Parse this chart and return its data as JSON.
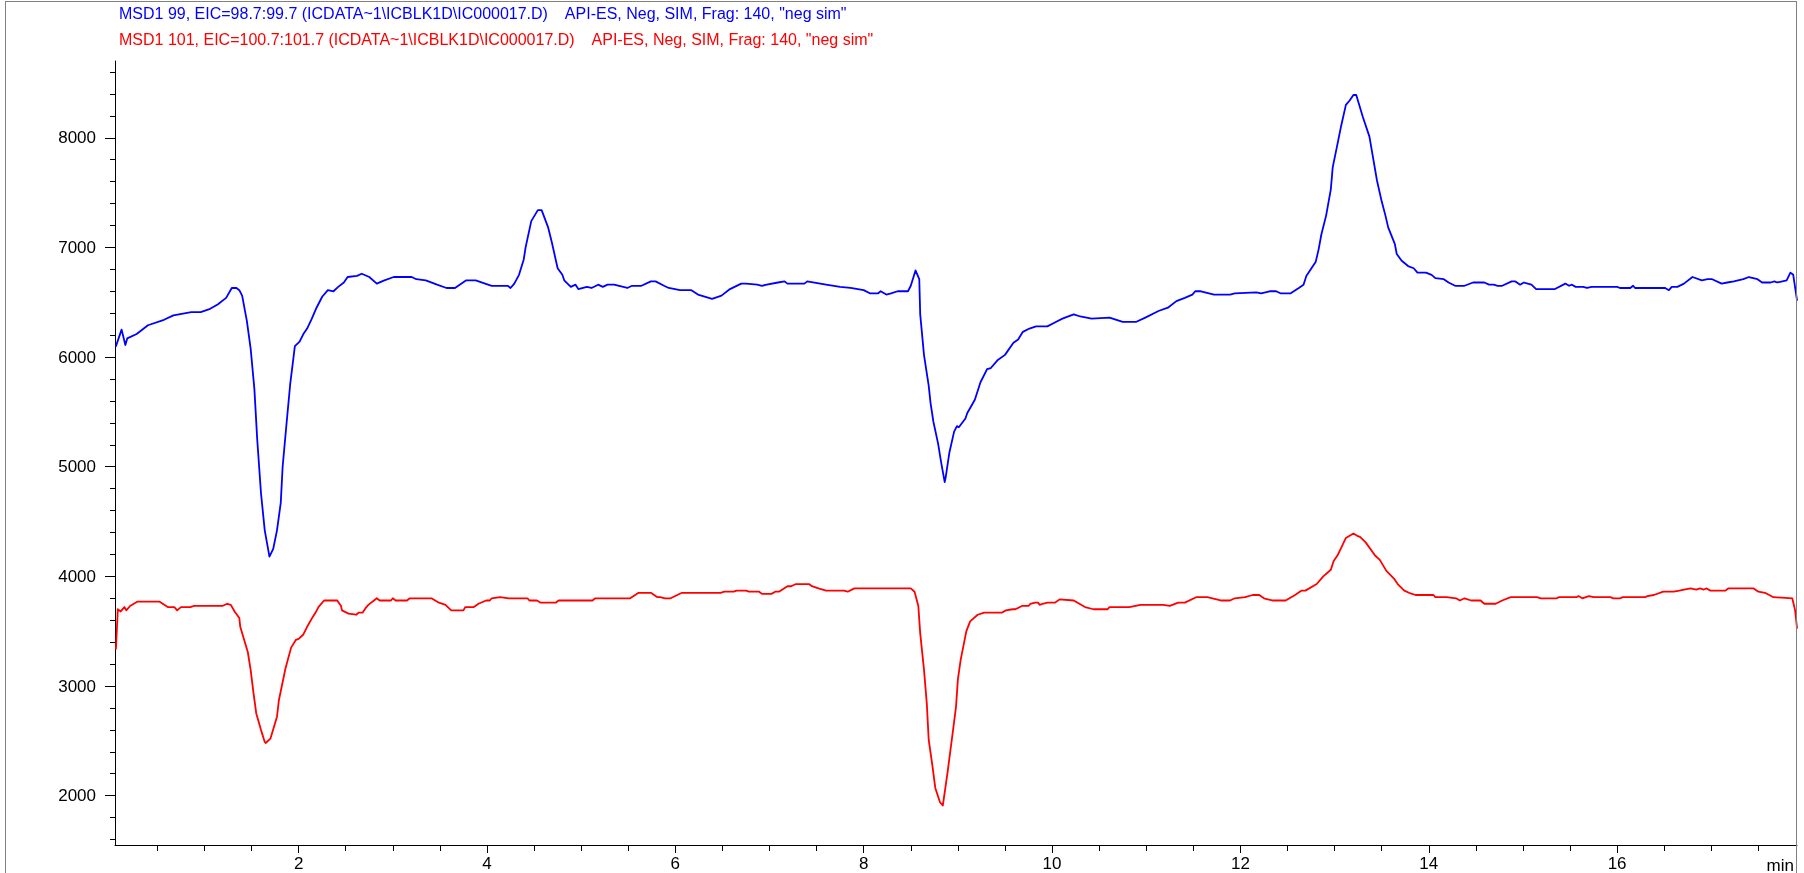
{
  "chart_data": {
    "type": "line",
    "xlabel": "min",
    "legend": "top left",
    "xlim": [
      0.05,
      17.91
    ],
    "xticks": [
      {
        "value": 0.5,
        "label": null
      },
      {
        "value": 1,
        "label": null
      },
      {
        "value": 1.5,
        "label": null
      },
      2,
      {
        "value": 2.5,
        "label": null
      },
      {
        "value": 3,
        "label": null
      },
      {
        "value": 3.5,
        "label": null
      },
      4,
      {
        "value": 4.5,
        "label": null
      },
      {
        "value": 5,
        "label": null
      },
      {
        "value": 5.5,
        "label": null
      },
      6,
      {
        "value": 6.5,
        "label": null
      },
      {
        "value": 7,
        "label": null
      },
      {
        "value": 7.5,
        "label": null
      },
      8,
      {
        "value": 8.5,
        "label": null
      },
      {
        "value": 9,
        "label": null
      },
      {
        "value": 9.5,
        "label": null
      },
      10,
      {
        "value": 10.5,
        "label": null
      },
      {
        "value": 11,
        "label": null
      },
      {
        "value": 11.5,
        "label": null
      },
      12,
      {
        "value": 12.5,
        "label": null
      },
      {
        "value": 13,
        "label": null
      },
      {
        "value": 13.5,
        "label": null
      },
      14,
      {
        "value": 14.5,
        "label": null
      },
      {
        "value": 15,
        "label": null
      },
      {
        "value": 15.5,
        "label": null
      },
      16,
      {
        "value": 16.5,
        "label": null
      },
      {
        "value": 17,
        "label": null
      },
      {
        "value": 17.5,
        "label": null
      }
    ],
    "ylim": [
      1550,
      8700
    ],
    "yticks": [
      {
        "value": 1600,
        "label": null
      },
      {
        "value": 1800,
        "label": null
      },
      2000,
      {
        "value": 2200,
        "label": null
      },
      {
        "value": 2400,
        "label": null
      },
      {
        "value": 2600,
        "label": null
      },
      {
        "value": 2800,
        "label": null
      },
      3000,
      {
        "value": 3200,
        "label": null
      },
      {
        "value": 3400,
        "label": null
      },
      {
        "value": 3600,
        "label": null
      },
      {
        "value": 3800,
        "label": null
      },
      4000,
      {
        "value": 4200,
        "label": null
      },
      {
        "value": 4400,
        "label": null
      },
      {
        "value": 4600,
        "label": null
      },
      {
        "value": 4800,
        "label": null
      },
      5000,
      {
        "value": 5200,
        "label": null
      },
      {
        "value": 5400,
        "label": null
      },
      {
        "value": 5600,
        "label": null
      },
      {
        "value": 5800,
        "label": null
      },
      6000,
      {
        "value": 6200,
        "label": null
      },
      {
        "value": 6400,
        "label": null
      },
      {
        "value": 6600,
        "label": null
      },
      {
        "value": 6800,
        "label": null
      },
      7000,
      {
        "value": 7200,
        "label": null
      },
      {
        "value": 7400,
        "label": null
      },
      {
        "value": 7600,
        "label": null
      },
      {
        "value": 7800,
        "label": null
      },
      8000,
      {
        "value": 8200,
        "label": null
      },
      {
        "value": 8400,
        "label": null
      },
      {
        "value": 8600,
        "label": null
      }
    ],
    "series": [
      {
        "name": "MSD1 99, EIC=98.7:99.7 (ICDATA~1\\ICBLK1D\\IC000017.D)    API-ES, Neg, SIM, Frag: 140, \"neg sim\"",
        "color": "#0000ff",
        "x": [
          0.06,
          0.12,
          0.16,
          0.18,
          0.28,
          0.4,
          0.57,
          0.67,
          0.86,
          0.96,
          1.06,
          1.14,
          1.23,
          1.29,
          1.34,
          1.37,
          1.4,
          1.45,
          1.49,
          1.53,
          1.56,
          1.6,
          1.64,
          1.69,
          1.73,
          1.77,
          1.81,
          1.83,
          1.87,
          1.91,
          1.96,
          2.01,
          2.05,
          2.09,
          2.14,
          2.19,
          2.25,
          2.31,
          2.37,
          2.42,
          2.48,
          2.52,
          2.62,
          2.67,
          2.75,
          2.83,
          2.91,
          3.01,
          3.2,
          3.25,
          3.35,
          3.47,
          3.57,
          3.66,
          3.71,
          3.78,
          3.88,
          3.98,
          4.05,
          4.22,
          4.25,
          4.29,
          4.34,
          4.39,
          4.41,
          4.47,
          4.54,
          4.58,
          4.65,
          4.69,
          4.75,
          4.8,
          4.82,
          4.89,
          4.94,
          4.97,
          5.06,
          5.11,
          5.18,
          5.23,
          5.28,
          5.35,
          5.49,
          5.54,
          5.64,
          5.74,
          5.79,
          5.88,
          5.93,
          6.05,
          6.17,
          6.24,
          6.39,
          6.49,
          6.58,
          6.7,
          6.75,
          6.87,
          6.92,
          6.97,
          7.09,
          7.16,
          7.19,
          7.37,
          7.4,
          7.6,
          7.75,
          7.86,
          8,
          8.07,
          8.15,
          8.18,
          8.24,
          8.29,
          8.36,
          8.47,
          8.5,
          8.55,
          8.59,
          8.6,
          8.64,
          8.69,
          8.71,
          8.74,
          8.79,
          8.82,
          8.86,
          8.87,
          8.91,
          8.96,
          8.99,
          9.01,
          9.08,
          9.1,
          9.18,
          9.24,
          9.31,
          9.35,
          9.42,
          9.5,
          9.59,
          9.64,
          9.69,
          9.76,
          9.83,
          9.95,
          10.04,
          10.11,
          10.23,
          10.3,
          10.42,
          10.61,
          10.75,
          10.89,
          10.99,
          11.13,
          11.23,
          11.32,
          11.41,
          11.49,
          11.52,
          11.58,
          11.72,
          11.89,
          11.94,
          12.17,
          12.22,
          12.31,
          12.38,
          12.43,
          12.53,
          12.62,
          12.67,
          12.7,
          12.8,
          12.83,
          12.86,
          12.91,
          12.96,
          12.98,
          13.03,
          13.07,
          13.12,
          13.16,
          13.2,
          13.23,
          13.3,
          13.37,
          13.4,
          13.45,
          13.5,
          13.54,
          13.57,
          13.64,
          13.66,
          13.71,
          13.78,
          13.84,
          13.88,
          13.97,
          14.03,
          14.07,
          14.16,
          14.21,
          14.28,
          14.38,
          14.47,
          14.59,
          14.64,
          14.69,
          14.73,
          14.78,
          14.88,
          14.92,
          14.97,
          15.01,
          15.09,
          15.14,
          15.34,
          15.45,
          15.49,
          15.52,
          15.56,
          15.64,
          15.68,
          15.73,
          16,
          16.03,
          16.14,
          16.17,
          16.19,
          16.51,
          16.55,
          16.58,
          16.64,
          16.71,
          16.8,
          16.9,
          16.96,
          17.01,
          17.11,
          17.17,
          17.24,
          17.34,
          17.4,
          17.49,
          17.54,
          17.63,
          17.67,
          17.7,
          17.8,
          17.84,
          17.87,
          17.91
        ],
        "values": [
          6100,
          6250,
          6110,
          6170,
          6210,
          6290,
          6340,
          6380,
          6410,
          6410,
          6440,
          6480,
          6540,
          6630,
          6630,
          6610,
          6560,
          6330,
          6080,
          5710,
          5250,
          4760,
          4420,
          4180,
          4250,
          4420,
          4670,
          5000,
          5380,
          5750,
          6100,
          6140,
          6210,
          6260,
          6350,
          6450,
          6550,
          6610,
          6600,
          6640,
          6680,
          6730,
          6740,
          6760,
          6730,
          6670,
          6700,
          6730,
          6730,
          6710,
          6700,
          6660,
          6630,
          6630,
          6660,
          6700,
          6700,
          6670,
          6650,
          6650,
          6630,
          6670,
          6750,
          6890,
          7000,
          7240,
          7340,
          7340,
          7180,
          7040,
          6810,
          6750,
          6700,
          6640,
          6660,
          6620,
          6640,
          6630,
          6660,
          6640,
          6660,
          6660,
          6630,
          6650,
          6650,
          6690,
          6690,
          6650,
          6630,
          6610,
          6610,
          6570,
          6530,
          6560,
          6620,
          6670,
          6670,
          6660,
          6650,
          6660,
          6680,
          6690,
          6670,
          6670,
          6690,
          6660,
          6640,
          6630,
          6610,
          6580,
          6580,
          6600,
          6570,
          6580,
          6600,
          6600,
          6650,
          6790,
          6710,
          6390,
          6020,
          5740,
          5580,
          5410,
          5210,
          5050,
          4860,
          4900,
          5130,
          5320,
          5370,
          5360,
          5440,
          5490,
          5610,
          5770,
          5890,
          5900,
          5970,
          6020,
          6130,
          6160,
          6230,
          6260,
          6280,
          6280,
          6320,
          6350,
          6390,
          6370,
          6350,
          6360,
          6320,
          6320,
          6360,
          6420,
          6450,
          6510,
          6540,
          6570,
          6600,
          6600,
          6570,
          6570,
          6580,
          6590,
          6580,
          6600,
          6600,
          6580,
          6580,
          6630,
          6660,
          6740,
          6870,
          6980,
          7120,
          7290,
          7530,
          7730,
          7940,
          8110,
          8300,
          8340,
          8390,
          8390,
          8190,
          8010,
          7860,
          7610,
          7420,
          7290,
          7180,
          7030,
          6940,
          6880,
          6830,
          6810,
          6770,
          6770,
          6750,
          6720,
          6710,
          6680,
          6650,
          6650,
          6680,
          6680,
          6660,
          6660,
          6650,
          6650,
          6690,
          6690,
          6660,
          6680,
          6660,
          6620,
          6620,
          6670,
          6650,
          6660,
          6640,
          6640,
          6630,
          6640,
          6640,
          6630,
          6630,
          6650,
          6630,
          6630,
          6610,
          6640,
          6640,
          6670,
          6730,
          6700,
          6710,
          6710,
          6670,
          6680,
          6690,
          6710,
          6730,
          6710,
          6680,
          6680,
          6690,
          6680,
          6700,
          6770,
          6750,
          6520
        ]
      },
      {
        "name": "MSD1 101, EIC=100.7:101.7 (ICDATA~1\\ICBLK1D\\IC000017.D)    API-ES, Neg, SIM, Frag: 140, \"neg sim\"",
        "color": "#ff0000",
        "x": [
          0.06,
          0.08,
          0.11,
          0.15,
          0.17,
          0.21,
          0.25,
          0.29,
          0.52,
          0.61,
          0.68,
          0.71,
          0.75,
          0.85,
          0.89,
          1.19,
          1.24,
          1.28,
          1.32,
          1.37,
          1.38,
          1.46,
          1.49,
          1.52,
          1.55,
          1.6,
          1.64,
          1.65,
          1.7,
          1.77,
          1.79,
          1.86,
          1.92,
          1.97,
          2,
          2.05,
          2.09,
          2.15,
          2.18,
          2.21,
          2.27,
          2.41,
          2.45,
          2.46,
          2.53,
          2.61,
          2.64,
          2.68,
          2.71,
          2.74,
          2.8,
          2.83,
          2.86,
          2.98,
          3,
          3.03,
          3.15,
          3.18,
          3.41,
          3.49,
          3.56,
          3.62,
          3.75,
          3.77,
          3.86,
          3.91,
          3.99,
          4.03,
          4.05,
          4.14,
          4.23,
          4.43,
          4.45,
          4.53,
          4.57,
          4.73,
          4.76,
          5.12,
          5.15,
          5.52,
          5.61,
          5.74,
          5.81,
          5.84,
          5.89,
          5.95,
          6.02,
          6.07,
          6.48,
          6.52,
          6.62,
          6.65,
          6.75,
          6.78,
          6.89,
          6.92,
          7.02,
          7.06,
          7.1,
          7.19,
          7.23,
          7.28,
          7.32,
          7.36,
          7.42,
          7.45,
          7.52,
          7.6,
          7.79,
          7.83,
          7.9,
          8.5,
          8.54,
          8.58,
          8.6,
          8.64,
          8.67,
          8.69,
          8.73,
          8.76,
          8.81,
          8.84,
          8.89,
          8.94,
          8.98,
          9,
          9.03,
          9.09,
          9.13,
          9.21,
          9.28,
          9.47,
          9.51,
          9.58,
          9.61,
          9.68,
          9.75,
          9.77,
          9.82,
          9.85,
          9.87,
          9.9,
          9.95,
          10.03,
          10.08,
          10.23,
          10.35,
          10.44,
          10.59,
          10.61,
          10.82,
          10.94,
          11.18,
          11.25,
          11.34,
          11.41,
          11.53,
          11.65,
          11.79,
          11.89,
          11.94,
          12.05,
          12.13,
          12.2,
          12.25,
          12.34,
          12.48,
          12.58,
          12.65,
          12.69,
          12.81,
          12.88,
          12.96,
          12.99,
          13.03,
          13.07,
          13.12,
          13.16,
          13.2,
          13.24,
          13.27,
          13.33,
          13.43,
          13.48,
          13.55,
          13.63,
          13.67,
          13.74,
          13.79,
          13.86,
          14.05,
          14.07,
          14.19,
          14.29,
          14.33,
          14.38,
          14.45,
          14.55,
          14.59,
          14.71,
          14.78,
          14.87,
          15.15,
          15.19,
          15.36,
          15.38,
          15.57,
          15.59,
          15.63,
          15.7,
          15.75,
          15.93,
          15.96,
          16.03,
          16.06,
          16.3,
          16.32,
          16.39,
          16.49,
          16.6,
          16.66,
          16.71,
          16.78,
          16.84,
          16.88,
          16.92,
          16.95,
          16.99,
          17.15,
          17.18,
          17.45,
          17.5,
          17.57,
          17.66,
          17.86,
          17.89,
          17.91
        ],
        "values": [
          3340,
          3700,
          3680,
          3720,
          3690,
          3730,
          3750,
          3770,
          3770,
          3720,
          3720,
          3690,
          3720,
          3720,
          3730,
          3730,
          3750,
          3740,
          3680,
          3620,
          3540,
          3310,
          3150,
          2940,
          2750,
          2600,
          2490,
          2480,
          2520,
          2720,
          2870,
          3160,
          3350,
          3420,
          3430,
          3470,
          3540,
          3630,
          3670,
          3720,
          3780,
          3780,
          3730,
          3690,
          3660,
          3650,
          3670,
          3670,
          3710,
          3740,
          3780,
          3800,
          3780,
          3780,
          3800,
          3780,
          3780,
          3800,
          3800,
          3760,
          3740,
          3690,
          3690,
          3720,
          3720,
          3750,
          3780,
          3780,
          3800,
          3810,
          3800,
          3800,
          3780,
          3780,
          3760,
          3760,
          3780,
          3780,
          3800,
          3800,
          3850,
          3850,
          3810,
          3810,
          3800,
          3800,
          3830,
          3850,
          3850,
          3860,
          3860,
          3870,
          3870,
          3860,
          3860,
          3840,
          3840,
          3860,
          3860,
          3910,
          3910,
          3930,
          3930,
          3930,
          3930,
          3910,
          3890,
          3870,
          3870,
          3860,
          3890,
          3890,
          3860,
          3730,
          3480,
          3150,
          2840,
          2510,
          2270,
          2070,
          1940,
          1910,
          2210,
          2540,
          2810,
          3060,
          3240,
          3500,
          3590,
          3650,
          3670,
          3670,
          3690,
          3700,
          3700,
          3730,
          3730,
          3750,
          3760,
          3760,
          3740,
          3750,
          3760,
          3760,
          3790,
          3780,
          3720,
          3700,
          3700,
          3720,
          3720,
          3740,
          3740,
          3730,
          3760,
          3760,
          3810,
          3810,
          3780,
          3780,
          3800,
          3810,
          3830,
          3830,
          3800,
          3780,
          3780,
          3830,
          3870,
          3870,
          3930,
          4000,
          4060,
          4140,
          4190,
          4260,
          4350,
          4370,
          4390,
          4370,
          4360,
          4310,
          4190,
          4150,
          4050,
          3980,
          3930,
          3870,
          3850,
          3830,
          3830,
          3810,
          3810,
          3800,
          3780,
          3800,
          3780,
          3780,
          3750,
          3750,
          3780,
          3810,
          3810,
          3800,
          3800,
          3810,
          3810,
          3820,
          3800,
          3820,
          3810,
          3810,
          3800,
          3800,
          3810,
          3810,
          3820,
          3830,
          3860,
          3860,
          3870,
          3880,
          3890,
          3880,
          3890,
          3880,
          3890,
          3870,
          3870,
          3890,
          3890,
          3860,
          3850,
          3810,
          3800,
          3690,
          3530
        ]
      }
    ]
  }
}
